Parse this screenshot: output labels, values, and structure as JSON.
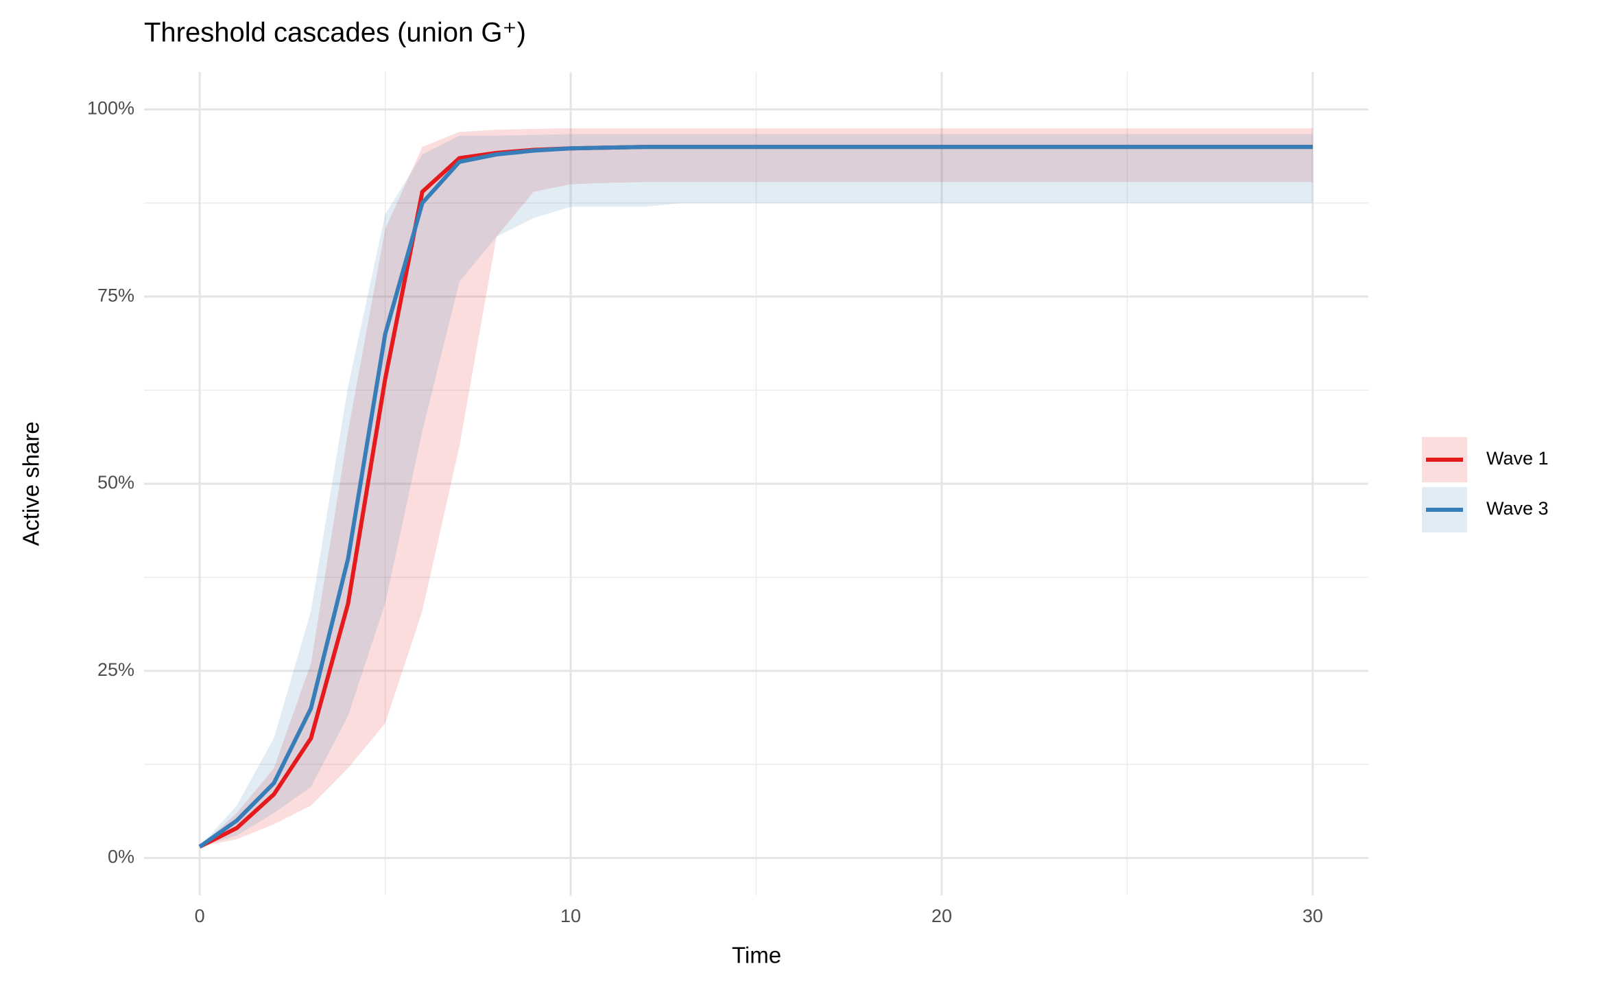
{
  "chart_data": {
    "type": "line",
    "title": "Threshold cascades (union G⁺)",
    "x_label": "Time",
    "y_label": "Active share",
    "x": [
      0,
      1,
      2,
      3,
      4,
      5,
      6,
      7,
      8,
      9,
      10,
      11,
      12,
      13,
      14,
      15,
      16,
      17,
      18,
      19,
      20,
      21,
      22,
      23,
      24,
      25,
      26,
      27,
      28,
      29,
      30
    ],
    "series": [
      {
        "name": "Wave 1",
        "color": "#e41a1c",
        "values": [
          1.5,
          4,
          8.5,
          16,
          34,
          64,
          89,
          93.5,
          94.2,
          94.6,
          94.8,
          94.9,
          95,
          95,
          95,
          95,
          95,
          95,
          95,
          95,
          95,
          95,
          95,
          95,
          95,
          95,
          95,
          95,
          95,
          95,
          95
        ],
        "lower": [
          1.5,
          2.5,
          4.5,
          7,
          12,
          18,
          33,
          55,
          83,
          89,
          90,
          90.2,
          90.3,
          90.3,
          90.3,
          90.3,
          90.3,
          90.3,
          90.3,
          90.3,
          90.3,
          90.3,
          90.3,
          90.3,
          90.3,
          90.3,
          90.3,
          90.3,
          90.3,
          90.3,
          90.3
        ],
        "upper": [
          1.5,
          6,
          12,
          26,
          57,
          84,
          95,
          97,
          97.3,
          97.4,
          97.5,
          97.5,
          97.5,
          97.5,
          97.5,
          97.5,
          97.5,
          97.5,
          97.5,
          97.5,
          97.5,
          97.5,
          97.5,
          97.5,
          97.5,
          97.5,
          97.5,
          97.5,
          97.5,
          97.5,
          97.5
        ]
      },
      {
        "name": "Wave 3",
        "color": "#377eb8",
        "values": [
          1.5,
          5,
          10,
          20,
          40,
          70,
          87.5,
          93,
          94,
          94.5,
          94.8,
          94.9,
          95,
          95,
          95,
          95,
          95,
          95,
          95,
          95,
          95,
          95,
          95,
          95,
          95,
          95,
          95,
          95,
          95,
          95,
          95
        ],
        "lower": [
          1.5,
          3,
          6,
          9.5,
          19,
          34,
          57,
          77,
          83,
          85.5,
          87,
          87,
          87,
          87.5,
          87.5,
          87.5,
          87.5,
          87.5,
          87.5,
          87.5,
          87.5,
          87.5,
          87.5,
          87.5,
          87.5,
          87.5,
          87.5,
          87.5,
          87.5,
          87.5,
          87.5
        ],
        "upper": [
          1.5,
          7,
          16,
          33,
          63,
          86,
          94,
          96.5,
          96.5,
          96.6,
          96.7,
          96.7,
          96.7,
          96.7,
          96.7,
          96.7,
          96.7,
          96.7,
          96.7,
          96.7,
          96.7,
          96.7,
          96.7,
          96.7,
          96.7,
          96.7,
          96.7,
          96.7,
          96.7,
          96.7,
          96.7
        ]
      }
    ],
    "xlim": [
      -1.5,
      31.5
    ],
    "xticks": [
      0,
      10,
      20,
      30
    ],
    "xminor": [
      5,
      15,
      25
    ],
    "ylim": [
      -5,
      105
    ],
    "yticks": [
      {
        "value": 0,
        "label": "0%"
      },
      {
        "value": 25,
        "label": "25%"
      },
      {
        "value": 50,
        "label": "50%"
      },
      {
        "value": 75,
        "label": "75%"
      },
      {
        "value": 100,
        "label": "100%"
      }
    ],
    "yminor": [
      12.5,
      37.5,
      62.5,
      87.5
    ],
    "grid": true,
    "legend": "right"
  }
}
